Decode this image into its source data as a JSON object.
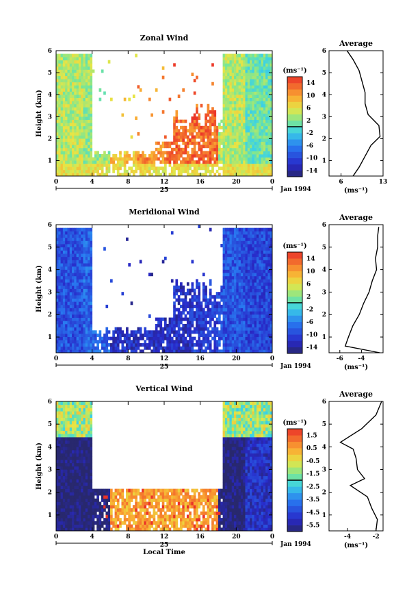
{
  "chart_data": [
    {
      "type": "heatmap",
      "title": "Zonal Wind",
      "ylabel": "Height (km)",
      "date_label": "Jan 1994",
      "day_label": "25",
      "x_ticks": [
        "0",
        "4",
        "8",
        "12",
        "16",
        "20",
        "0"
      ],
      "x_range": [
        0,
        24
      ],
      "y_ticks": [
        "1",
        "2",
        "3",
        "4",
        "5",
        "6"
      ],
      "y_range": [
        0.3,
        6
      ],
      "colorbar": {
        "unit": "(ms⁻¹)",
        "ticks": [
          "14",
          "10",
          "6",
          "2",
          "-2",
          "-6",
          "-10",
          "-14"
        ],
        "range": [
          -16,
          16
        ]
      },
      "regime": [
        4,
        3,
        8,
        11,
        13,
        13,
        4,
        1
      ],
      "profile": {
        "title": "Average",
        "xlabel": "(ms⁻¹)",
        "x_ticks": [
          "6",
          "13"
        ],
        "x_range": [
          4,
          13
        ],
        "x": [
          8,
          9,
          10,
          11,
          12.5,
          12.3,
          10.5,
          10,
          10,
          9.5,
          9,
          8,
          7
        ],
        "y": [
          0.3,
          0.7,
          1.2,
          1.7,
          2.1,
          2.6,
          3.1,
          3.6,
          4.1,
          4.6,
          5.1,
          5.6,
          6.0
        ]
      }
    },
    {
      "type": "heatmap",
      "title": "Meridional Wind",
      "ylabel": "Height (km)",
      "date_label": "Jan 1994",
      "day_label": "25",
      "x_ticks": [
        "0",
        "4",
        "8",
        "12",
        "16",
        "20",
        "0"
      ],
      "x_range": [
        0,
        24
      ],
      "y_ticks": [
        "1",
        "2",
        "3",
        "4",
        "5",
        "6"
      ],
      "y_range": [
        0.3,
        6
      ],
      "colorbar": {
        "unit": "(ms⁻¹)",
        "ticks": [
          "14",
          "10",
          "6",
          "2",
          "-2",
          "-6",
          "-10",
          "-14"
        ],
        "range": [
          -16,
          16
        ]
      },
      "regime": [
        -9,
        -8,
        -12,
        -12,
        -12,
        -11,
        -9,
        -10
      ],
      "profile": {
        "title": "Average",
        "xlabel": "(ms⁻¹)",
        "x_ticks": [
          "-6",
          "-4"
        ],
        "x_range": [
          -7,
          -2
        ],
        "x": [
          -2.3,
          -5.5,
          -5.2,
          -4.8,
          -4.2,
          -3.8,
          -3.3,
          -3.0,
          -2.6,
          -2.7,
          -2.5,
          -2.5,
          -2.4
        ],
        "y": [
          0.3,
          0.6,
          1.0,
          1.5,
          2.0,
          2.5,
          3.0,
          3.5,
          4.0,
          4.5,
          5.0,
          5.5,
          5.9
        ]
      }
    },
    {
      "type": "heatmap",
      "title": "Vertical Wind",
      "ylabel": "Height (km)",
      "xlabel": "Local Time",
      "date_label": "Jan 1994",
      "day_label": "25",
      "x_ticks": [
        "0",
        "4",
        "8",
        "12",
        "16",
        "20",
        "0"
      ],
      "x_range": [
        0,
        24
      ],
      "y_ticks": [
        "1",
        "2",
        "3",
        "4",
        "5",
        "6"
      ],
      "y_range": [
        0.3,
        6
      ],
      "colorbar": {
        "unit": "(ms⁻¹)",
        "ticks": [
          "1.5",
          "0.5",
          "-0.5",
          "-1.5",
          "-2.5",
          "-3.5",
          "-4.5",
          "-5.5"
        ],
        "range": [
          -6,
          2
        ]
      },
      "regime": [
        -6,
        -6,
        0.5,
        0.5,
        0.5,
        0.5,
        -6,
        -5
      ],
      "profile": {
        "title": "Average",
        "xlabel": "(ms⁻¹)",
        "x_ticks": [
          "-4",
          "-2"
        ],
        "x_range": [
          -5.3,
          -1.5
        ],
        "x": [
          -2.0,
          -1.9,
          -2.3,
          -2.6,
          -3.8,
          -2.8,
          -3.3,
          -3.4,
          -3.6,
          -4.5,
          -3.0,
          -2.0,
          -1.6
        ],
        "y": [
          0.3,
          0.8,
          1.3,
          1.8,
          2.3,
          2.6,
          3.0,
          3.5,
          3.9,
          4.2,
          4.8,
          5.4,
          6.0
        ]
      }
    }
  ]
}
